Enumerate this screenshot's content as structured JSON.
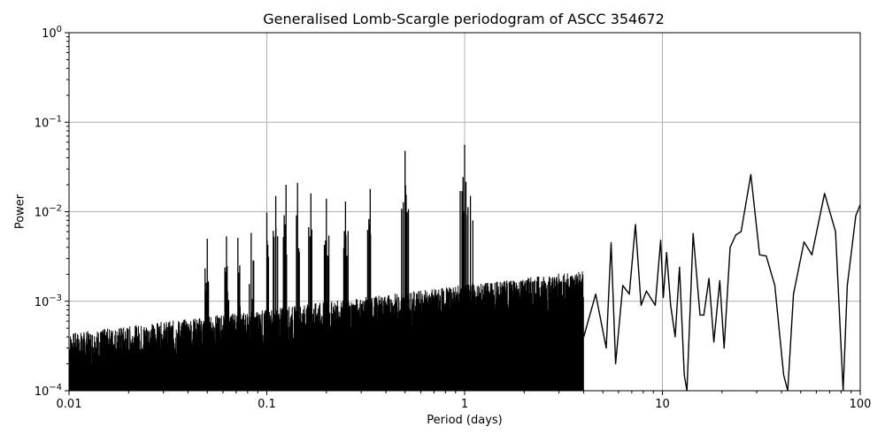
{
  "chart_data": {
    "type": "line",
    "title": "Generalised Lomb-Scargle periodogram of ASCC 354672",
    "xlabel": "Period (days)",
    "ylabel": "Power",
    "xscale": "log",
    "yscale": "log",
    "xlim": [
      0.01,
      100
    ],
    "ylim": [
      0.0001,
      1
    ],
    "grid": true,
    "legend": null,
    "x_ticks": [
      "0.01",
      "0.1",
      "1",
      "10",
      "100"
    ],
    "y_ticks": [
      "10^0",
      "10^-1",
      "10^-2",
      "10^-3",
      "10^-4"
    ],
    "line_color": "#000000",
    "prominent_peaks": [
      {
        "period": 0.05,
        "power": 0.005
      },
      {
        "period": 0.0625,
        "power": 0.0053
      },
      {
        "period": 0.0714,
        "power": 0.0051
      },
      {
        "period": 0.0833,
        "power": 0.0058
      },
      {
        "period": 0.1,
        "power": 0.0098
      },
      {
        "period": 0.111,
        "power": 0.015
      },
      {
        "period": 0.125,
        "power": 0.02
      },
      {
        "period": 0.143,
        "power": 0.021
      },
      {
        "period": 0.167,
        "power": 0.016
      },
      {
        "period": 0.2,
        "power": 0.014
      },
      {
        "period": 0.25,
        "power": 0.013
      },
      {
        "period": 0.333,
        "power": 0.018
      },
      {
        "period": 0.5,
        "power": 0.048
      },
      {
        "period": 1.0,
        "power": 0.056
      },
      {
        "period": 5.5,
        "power": 0.0045
      },
      {
        "period": 7.3,
        "power": 0.0072
      },
      {
        "period": 9.8,
        "power": 0.0048
      },
      {
        "period": 14.3,
        "power": 0.0057
      },
      {
        "period": 17.2,
        "power": 0.0018
      },
      {
        "period": 19.5,
        "power": 0.0017
      },
      {
        "period": 28.0,
        "power": 0.026
      },
      {
        "period": 33.5,
        "power": 0.0032
      },
      {
        "period": 52.0,
        "power": 0.0046
      },
      {
        "period": 66.0,
        "power": 0.016
      },
      {
        "period": 100.0,
        "power": 0.012
      }
    ],
    "noise_floor": {
      "period_range": [
        0.01,
        4
      ],
      "power_range": [
        0.0001,
        0.0012
      ]
    }
  }
}
